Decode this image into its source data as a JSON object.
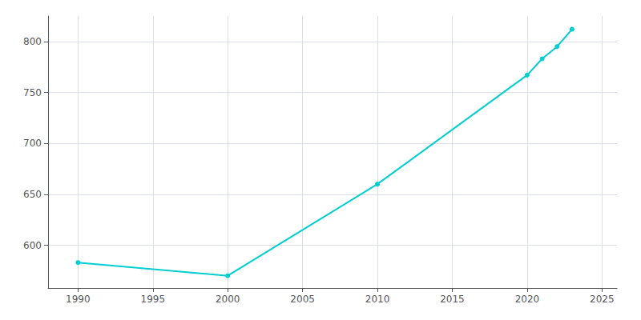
{
  "chart_data": {
    "type": "line",
    "x": [
      1990,
      2000,
      2010,
      2020,
      2021,
      2022,
      2023
    ],
    "values": [
      583,
      570,
      660,
      767,
      783,
      795,
      812
    ],
    "color": "#00CED1",
    "marker": "circle",
    "xlim": [
      1988,
      2026
    ],
    "xticks": [
      1990,
      1995,
      2000,
      2005,
      2010,
      2015,
      2020,
      2025
    ],
    "ylim": [
      558,
      825
    ],
    "yticks": [
      600,
      650,
      700,
      750,
      800
    ],
    "grid": true
  }
}
